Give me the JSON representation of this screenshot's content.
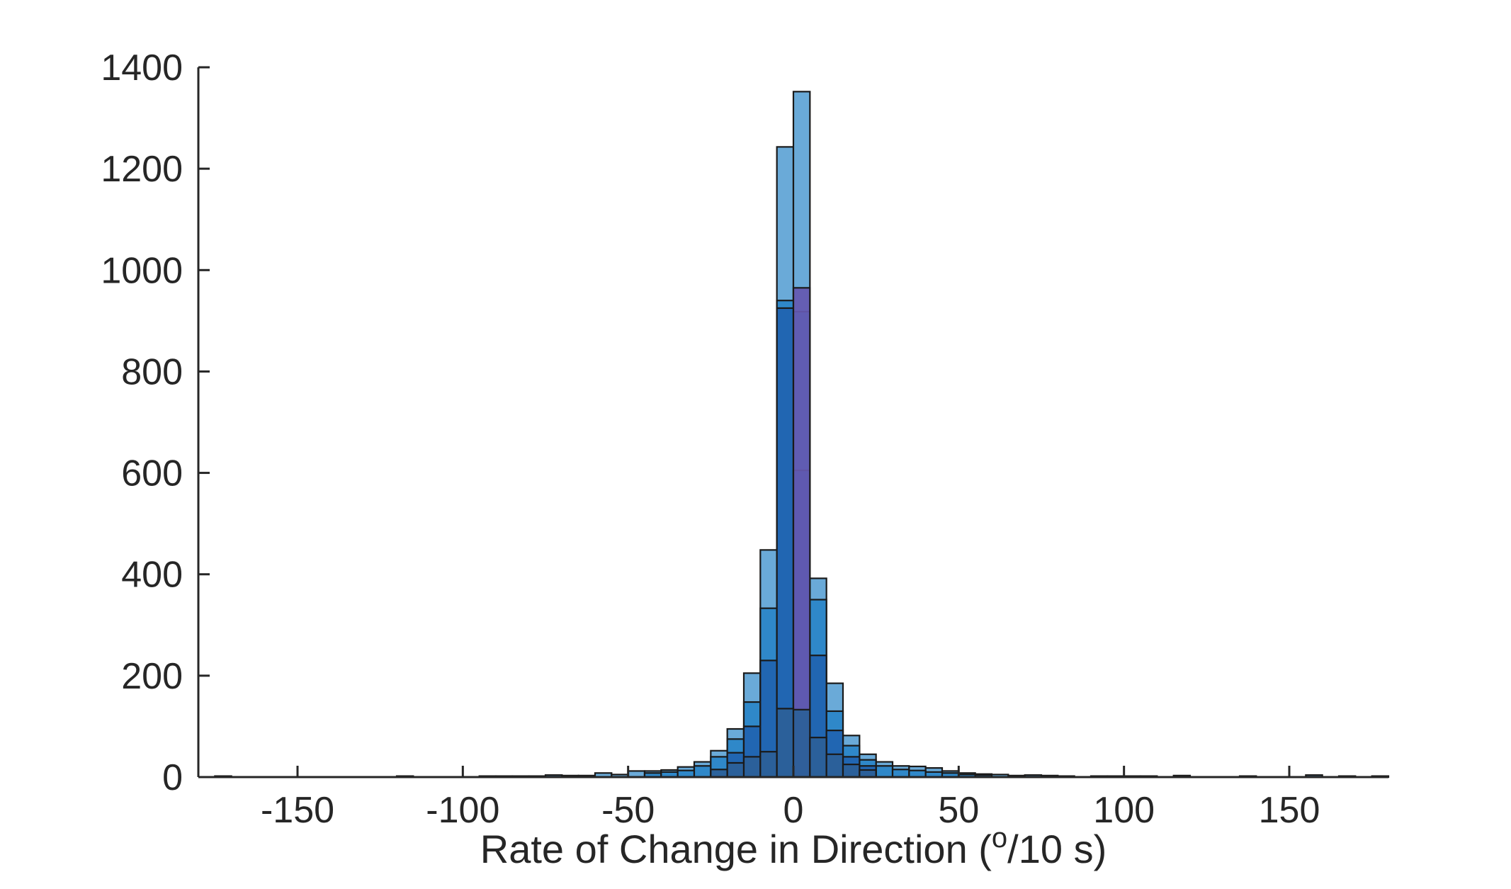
{
  "chart_data": {
    "type": "bar",
    "subtype": "overlaid-histogram",
    "title": "",
    "xlabel_parts": {
      "prefix": "Rate of Change in Direction (",
      "superscript": "o",
      "suffix": "/10 s)"
    },
    "ylabel": "",
    "xlim": [
      -180,
      180
    ],
    "ylim": [
      0,
      1400
    ],
    "x_ticks": [
      -150,
      -100,
      -50,
      0,
      50,
      100,
      150
    ],
    "x_tick_labels": [
      "-150",
      "-100",
      "-50",
      "0",
      "50",
      "100",
      "150"
    ],
    "y_ticks": [
      0,
      200,
      400,
      600,
      800,
      1000,
      1200,
      1400
    ],
    "y_tick_labels": [
      "0",
      "200",
      "400",
      "600",
      "800",
      "1000",
      "1200",
      "1400"
    ],
    "grid": false,
    "legend": "none",
    "bin_width": 5,
    "series_colors": [
      "#6aaad8",
      "#2a86c8",
      "#2163b0",
      "#6558b0",
      "#2c5f98"
    ],
    "series": [
      {
        "bins": [
          [
            -175,
            2
          ],
          [
            -120,
            2
          ],
          [
            -95,
            2
          ],
          [
            -90,
            2
          ],
          [
            -85,
            2
          ],
          [
            -80,
            2
          ],
          [
            -75,
            4
          ],
          [
            -70,
            3
          ],
          [
            -65,
            3
          ],
          [
            -60,
            8
          ],
          [
            -55,
            5
          ],
          [
            -50,
            12
          ],
          [
            -45,
            12
          ],
          [
            -40,
            14
          ],
          [
            -35,
            20
          ],
          [
            -30,
            30
          ],
          [
            -25,
            52
          ],
          [
            -20,
            95
          ],
          [
            -15,
            205
          ],
          [
            -10,
            448
          ],
          [
            -5,
            1243
          ],
          [
            0,
            1352
          ],
          [
            5,
            392
          ],
          [
            10,
            185
          ],
          [
            15,
            82
          ],
          [
            20,
            45
          ],
          [
            25,
            30
          ],
          [
            30,
            22
          ],
          [
            35,
            21
          ],
          [
            40,
            18
          ],
          [
            45,
            12
          ],
          [
            50,
            8
          ],
          [
            55,
            6
          ],
          [
            60,
            5
          ],
          [
            65,
            3
          ],
          [
            70,
            4
          ],
          [
            75,
            3
          ],
          [
            80,
            2
          ],
          [
            90,
            2
          ],
          [
            95,
            2
          ],
          [
            100,
            2
          ],
          [
            105,
            2
          ],
          [
            115,
            3
          ],
          [
            135,
            2
          ],
          [
            155,
            4
          ],
          [
            165,
            2
          ],
          [
            175,
            2
          ]
        ]
      },
      {
        "bins": [
          [
            -45,
            8
          ],
          [
            -40,
            10
          ],
          [
            -35,
            13
          ],
          [
            -30,
            22
          ],
          [
            -25,
            40
          ],
          [
            -20,
            75
          ],
          [
            -15,
            148
          ],
          [
            -10,
            333
          ],
          [
            -5,
            940
          ],
          [
            0,
            918
          ],
          [
            5,
            350
          ],
          [
            10,
            130
          ],
          [
            15,
            62
          ],
          [
            20,
            34
          ],
          [
            25,
            22
          ],
          [
            30,
            15
          ],
          [
            35,
            13
          ],
          [
            40,
            10
          ],
          [
            45,
            8
          ],
          [
            50,
            5
          ],
          [
            55,
            4
          ]
        ]
      },
      {
        "bins": [
          [
            -20,
            48
          ],
          [
            -15,
            100
          ],
          [
            -10,
            230
          ],
          [
            -5,
            925
          ],
          [
            0,
            605
          ],
          [
            5,
            240
          ],
          [
            10,
            92
          ],
          [
            15,
            40
          ],
          [
            20,
            22
          ]
        ]
      },
      {
        "bins": [
          [
            0,
            965
          ]
        ]
      },
      {
        "bins": [
          [
            -25,
            15
          ],
          [
            -20,
            28
          ],
          [
            -15,
            40
          ],
          [
            -10,
            50
          ],
          [
            -5,
            135
          ],
          [
            0,
            133
          ],
          [
            5,
            78
          ],
          [
            10,
            45
          ],
          [
            15,
            25
          ],
          [
            20,
            14
          ]
        ]
      }
    ]
  }
}
